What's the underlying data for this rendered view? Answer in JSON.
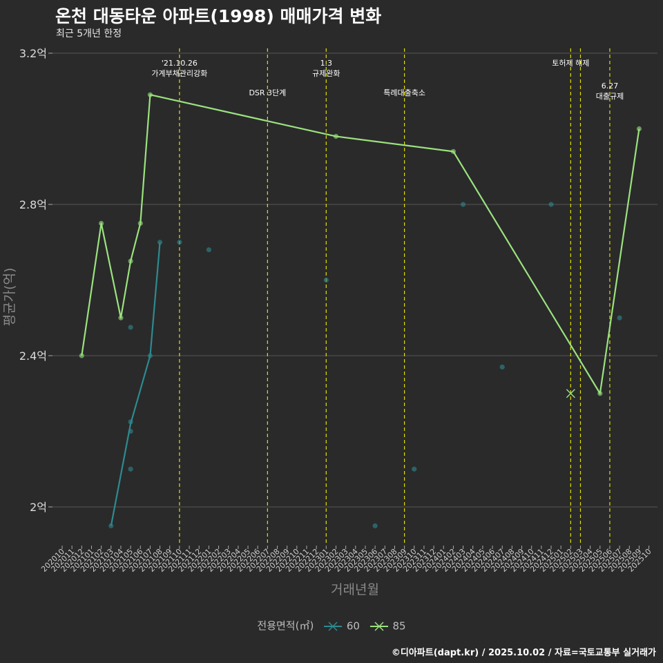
{
  "title": "온천 대동타운 아파트(1998) 매매가격 변화",
  "subtitle": "최근 5개년 한정",
  "caption": "©디아파트(dapt.kr) / 2025.10.02 / 자료=국토교통부 실거래가",
  "legend": {
    "title": "전용면적(㎡)",
    "items": [
      {
        "label": "60",
        "color": "#2e8b8f"
      },
      {
        "label": "85",
        "color": "#9be37d"
      }
    ]
  },
  "chart_data": {
    "type": "line",
    "xlabel": "거래년월",
    "ylabel": "평균가(억)",
    "ylim": [
      1.9,
      3.2
    ],
    "grid": true,
    "legend_position": "bottom",
    "yticks": [
      {
        "value": 2.0,
        "label": "2억"
      },
      {
        "value": 2.4,
        "label": "2.4억"
      },
      {
        "value": 2.8,
        "label": "2.8억"
      },
      {
        "value": 3.2,
        "label": "3.2억"
      }
    ],
    "categories": [
      "202010",
      "202011",
      "202012",
      "202101",
      "202102",
      "202103",
      "202104",
      "202105",
      "202106",
      "202107",
      "202108",
      "202109",
      "202110",
      "202111",
      "202112",
      "202201",
      "202202",
      "202203",
      "202204",
      "202205",
      "202206",
      "202207",
      "202208",
      "202209",
      "202210",
      "202211",
      "202212",
      "202301",
      "202302",
      "202303",
      "202304",
      "202305",
      "202306",
      "202307",
      "202308",
      "202309",
      "202310",
      "202311",
      "202312",
      "202401",
      "202402",
      "202403",
      "202404",
      "202405",
      "202406",
      "202407",
      "202408",
      "202409",
      "202410",
      "202411",
      "202412",
      "202501",
      "202502",
      "202503",
      "202504",
      "202505",
      "202506",
      "202507",
      "202508",
      "202509",
      "202510"
    ],
    "series": [
      {
        "name": "60",
        "color": "#2e8b8f",
        "line": [
          [
            "202103",
            1.95
          ],
          [
            "202105",
            2.22
          ],
          [
            "202107",
            2.4
          ],
          [
            "202108",
            2.7
          ]
        ],
        "points": [
          [
            "202103",
            1.95
          ],
          [
            "202105",
            2.1
          ],
          [
            "202105",
            2.2
          ],
          [
            "202105",
            2.225
          ],
          [
            "202105",
            2.475
          ],
          [
            "202107",
            2.4
          ],
          [
            "202108",
            2.7
          ],
          [
            "202110",
            2.7
          ],
          [
            "202201",
            2.68
          ],
          [
            "202301",
            2.6
          ],
          [
            "202306",
            1.95
          ],
          [
            "202310",
            2.1
          ],
          [
            "202403",
            2.8
          ],
          [
            "202407",
            2.37
          ],
          [
            "202412",
            2.8
          ],
          [
            "202507",
            2.5
          ]
        ]
      },
      {
        "name": "85",
        "color": "#9be37d",
        "line": [
          [
            "202012",
            2.4
          ],
          [
            "202102",
            2.75
          ],
          [
            "202104",
            2.5
          ],
          [
            "202105",
            2.65
          ],
          [
            "202106",
            2.75
          ],
          [
            "202107",
            3.09
          ],
          [
            "202302",
            2.98
          ],
          [
            "202402",
            2.94
          ],
          [
            "202505",
            2.3
          ],
          [
            "202509",
            3.0
          ]
        ],
        "points": [
          [
            "202012",
            2.4
          ],
          [
            "202102",
            2.75
          ],
          [
            "202104",
            2.5
          ],
          [
            "202105",
            2.65
          ],
          [
            "202106",
            2.75
          ],
          [
            "202107",
            3.09
          ],
          [
            "202302",
            2.98
          ],
          [
            "202402",
            2.94
          ],
          [
            "202505",
            2.3
          ],
          [
            "202509",
            3.0
          ]
        ]
      }
    ],
    "cross_marker": {
      "x": "202502",
      "y": 2.3,
      "color": "#9be37d"
    },
    "annotations": [
      {
        "x": "202110",
        "lines": [
          "'21.10.26",
          "가계부채관리강화"
        ],
        "tier": 1
      },
      {
        "x": "202207",
        "lines": [
          "DSR 3단계"
        ],
        "tier": 2
      },
      {
        "x": "202301",
        "lines": [
          "1.3",
          "규제완화"
        ],
        "tier": 1
      },
      {
        "x": "202309",
        "lines": [
          "특례대출축소"
        ],
        "tier": 2
      },
      {
        "x": "202502",
        "lines": [
          "토허제 해제"
        ],
        "tier": 1
      },
      {
        "x": "202503",
        "lines": [],
        "tier": 1
      },
      {
        "x": "202506",
        "lines": [
          "6.27",
          "대출규제"
        ],
        "tier": 3
      }
    ],
    "vline_color": "#e0e000"
  }
}
